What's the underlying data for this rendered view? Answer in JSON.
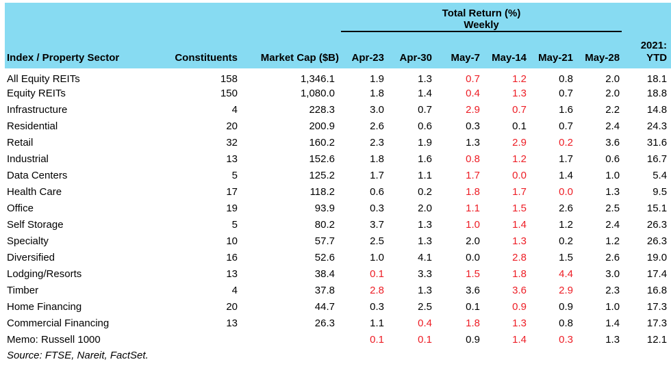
{
  "colors": {
    "header_bg": "#87DBF2",
    "negative": "#ED1C24",
    "text": "#000000"
  },
  "table": {
    "group_header": {
      "line1": "Total Return (%)",
      "line2": "Weekly"
    },
    "columns": {
      "sector": "Index / Property Sector",
      "constituents": "Constituents",
      "market_cap": "Market Cap ($B)",
      "weeks": [
        "Apr-23",
        "Apr-30",
        "May-7",
        "May-14",
        "May-21",
        "May-28"
      ],
      "ytd_line1": "2021:",
      "ytd_line2": "YTD"
    },
    "rows": [
      {
        "sector": "All Equity REITs",
        "constituents": "158",
        "market_cap": "1,346.1",
        "weekly": [
          "1.9",
          "1.3",
          "0.7",
          "1.2",
          "0.8",
          "2.0"
        ],
        "neg": [
          0,
          0,
          1,
          1,
          0,
          0
        ],
        "ytd": "18.1"
      },
      {
        "sector": "Equity REITs",
        "constituents": "150",
        "market_cap": "1,080.0",
        "weekly": [
          "1.8",
          "1.4",
          "0.4",
          "1.3",
          "0.7",
          "2.0"
        ],
        "neg": [
          0,
          0,
          1,
          1,
          0,
          0
        ],
        "ytd": "18.8"
      },
      {
        "sector": "Infrastructure",
        "constituents": "4",
        "market_cap": "228.3",
        "weekly": [
          "3.0",
          "0.7",
          "2.9",
          "0.7",
          "1.6",
          "2.2"
        ],
        "neg": [
          0,
          0,
          1,
          1,
          0,
          0
        ],
        "ytd": "14.8"
      },
      {
        "sector": "Residential",
        "constituents": "20",
        "market_cap": "200.9",
        "weekly": [
          "2.6",
          "0.6",
          "0.3",
          "0.1",
          "0.7",
          "2.4"
        ],
        "neg": [
          0,
          0,
          0,
          0,
          0,
          0
        ],
        "ytd": "24.3"
      },
      {
        "sector": "Retail",
        "constituents": "32",
        "market_cap": "160.2",
        "weekly": [
          "2.3",
          "1.9",
          "1.3",
          "2.9",
          "0.2",
          "3.6"
        ],
        "neg": [
          0,
          0,
          0,
          1,
          1,
          0
        ],
        "ytd": "31.6"
      },
      {
        "sector": "Industrial",
        "constituents": "13",
        "market_cap": "152.6",
        "weekly": [
          "1.8",
          "1.6",
          "0.8",
          "1.2",
          "1.7",
          "0.6"
        ],
        "neg": [
          0,
          0,
          1,
          1,
          0,
          0
        ],
        "ytd": "16.7"
      },
      {
        "sector": "Data Centers",
        "constituents": "5",
        "market_cap": "125.2",
        "weekly": [
          "1.7",
          "1.1",
          "1.7",
          "0.0",
          "1.4",
          "1.0"
        ],
        "neg": [
          0,
          0,
          1,
          1,
          0,
          0
        ],
        "ytd": "5.4"
      },
      {
        "sector": "Health Care",
        "constituents": "17",
        "market_cap": "118.2",
        "weekly": [
          "0.6",
          "0.2",
          "1.8",
          "1.7",
          "0.0",
          "1.3"
        ],
        "neg": [
          0,
          0,
          1,
          1,
          1,
          0
        ],
        "ytd": "9.5"
      },
      {
        "sector": "Office",
        "constituents": "19",
        "market_cap": "93.9",
        "weekly": [
          "0.3",
          "2.0",
          "1.1",
          "1.5",
          "2.6",
          "2.5"
        ],
        "neg": [
          0,
          0,
          1,
          1,
          0,
          0
        ],
        "ytd": "15.1"
      },
      {
        "sector": "Self Storage",
        "constituents": "5",
        "market_cap": "80.2",
        "weekly": [
          "3.7",
          "1.3",
          "1.0",
          "1.4",
          "1.2",
          "2.4"
        ],
        "neg": [
          0,
          0,
          1,
          1,
          0,
          0
        ],
        "ytd": "26.3"
      },
      {
        "sector": "Specialty",
        "constituents": "10",
        "market_cap": "57.7",
        "weekly": [
          "2.5",
          "1.3",
          "2.0",
          "1.3",
          "0.2",
          "1.2"
        ],
        "neg": [
          0,
          0,
          0,
          1,
          0,
          0
        ],
        "ytd": "26.3"
      },
      {
        "sector": "Diversified",
        "constituents": "16",
        "market_cap": "52.6",
        "weekly": [
          "1.0",
          "4.1",
          "0.0",
          "2.8",
          "1.5",
          "2.6"
        ],
        "neg": [
          0,
          0,
          0,
          1,
          0,
          0
        ],
        "ytd": "19.0"
      },
      {
        "sector": "Lodging/Resorts",
        "constituents": "13",
        "market_cap": "38.4",
        "weekly": [
          "0.1",
          "3.3",
          "1.5",
          "1.8",
          "4.4",
          "3.0"
        ],
        "neg": [
          1,
          0,
          1,
          1,
          1,
          0
        ],
        "ytd": "17.4"
      },
      {
        "sector": "Timber",
        "constituents": "4",
        "market_cap": "37.8",
        "weekly": [
          "2.8",
          "1.3",
          "3.6",
          "3.6",
          "2.9",
          "2.3"
        ],
        "neg": [
          1,
          0,
          0,
          1,
          1,
          0
        ],
        "ytd": "16.8"
      },
      {
        "sector": "Home Financing",
        "constituents": "20",
        "market_cap": "44.7",
        "weekly": [
          "0.3",
          "2.5",
          "0.1",
          "0.9",
          "0.9",
          "1.0"
        ],
        "neg": [
          0,
          0,
          0,
          1,
          0,
          0
        ],
        "ytd": "17.3"
      },
      {
        "sector": "Commercial Financing",
        "constituents": "13",
        "market_cap": "26.3",
        "weekly": [
          "1.1",
          "0.4",
          "1.8",
          "1.3",
          "0.8",
          "1.4"
        ],
        "neg": [
          0,
          1,
          1,
          1,
          0,
          0
        ],
        "ytd": "17.3"
      },
      {
        "sector": "Memo: Russell 1000",
        "constituents": "",
        "market_cap": "",
        "weekly": [
          "0.1",
          "0.1",
          "0.9",
          "1.4",
          "0.3",
          "1.3"
        ],
        "neg": [
          1,
          1,
          0,
          1,
          1,
          0
        ],
        "ytd": "12.1"
      }
    ],
    "source": "Source: FTSE, Nareit, FactSet."
  }
}
